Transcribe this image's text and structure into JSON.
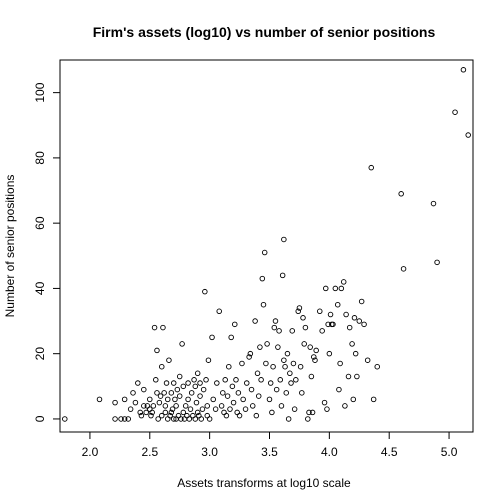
{
  "chart_data": {
    "type": "scatter",
    "title": "Firm's assets (log10) vs number of senior positions",
    "xlabel": "Assets transforms at log10 scale",
    "ylabel": "Number of senior positions",
    "xlim": [
      1.75,
      5.2
    ],
    "ylim": [
      -4,
      110
    ],
    "x_ticks": [
      2.0,
      2.5,
      3.0,
      3.5,
      4.0,
      4.5,
      5.0
    ],
    "x_tick_labels": [
      "2.0",
      "2.5",
      "3.0",
      "3.5",
      "4.0",
      "4.5",
      "5.0"
    ],
    "y_ticks": [
      0,
      20,
      40,
      60,
      80,
      100
    ],
    "y_tick_labels": [
      "0",
      "20",
      "40",
      "60",
      "80",
      "100"
    ],
    "grid": false,
    "legend": "none",
    "points": [
      [
        1.79,
        0
      ],
      [
        2.08,
        6
      ],
      [
        2.21,
        0
      ],
      [
        2.21,
        5
      ],
      [
        2.26,
        0
      ],
      [
        2.29,
        6
      ],
      [
        2.29,
        0
      ],
      [
        2.32,
        0
      ],
      [
        2.34,
        3
      ],
      [
        2.36,
        8
      ],
      [
        2.38,
        5
      ],
      [
        2.4,
        11
      ],
      [
        2.42,
        2
      ],
      [
        2.43,
        1
      ],
      [
        2.45,
        4
      ],
      [
        2.45,
        9
      ],
      [
        2.47,
        2
      ],
      [
        2.48,
        4
      ],
      [
        2.5,
        3
      ],
      [
        2.5,
        6
      ],
      [
        2.51,
        1
      ],
      [
        2.52,
        2
      ],
      [
        2.53,
        4
      ],
      [
        2.54,
        28
      ],
      [
        2.55,
        12
      ],
      [
        2.56,
        8
      ],
      [
        2.56,
        21
      ],
      [
        2.57,
        0
      ],
      [
        2.58,
        5
      ],
      [
        2.59,
        7
      ],
      [
        2.6,
        1
      ],
      [
        2.6,
        16
      ],
      [
        2.61,
        28
      ],
      [
        2.62,
        8
      ],
      [
        2.63,
        4
      ],
      [
        2.63,
        2
      ],
      [
        2.64,
        11
      ],
      [
        2.65,
        0
      ],
      [
        2.65,
        6
      ],
      [
        2.66,
        18
      ],
      [
        2.67,
        1
      ],
      [
        2.68,
        2
      ],
      [
        2.68,
        8
      ],
      [
        2.69,
        3
      ],
      [
        2.7,
        0
      ],
      [
        2.7,
        11
      ],
      [
        2.71,
        6
      ],
      [
        2.72,
        4
      ],
      [
        2.72,
        0
      ],
      [
        2.73,
        9
      ],
      [
        2.74,
        1
      ],
      [
        2.75,
        13
      ],
      [
        2.75,
        7
      ],
      [
        2.76,
        0
      ],
      [
        2.77,
        23
      ],
      [
        2.78,
        2
      ],
      [
        2.78,
        10
      ],
      [
        2.79,
        0
      ],
      [
        2.8,
        4
      ],
      [
        2.81,
        1
      ],
      [
        2.82,
        6
      ],
      [
        2.82,
        11
      ],
      [
        2.83,
        0
      ],
      [
        2.84,
        3
      ],
      [
        2.85,
        8
      ],
      [
        2.86,
        1
      ],
      [
        2.87,
        12
      ],
      [
        2.88,
        10
      ],
      [
        2.88,
        0
      ],
      [
        2.89,
        5
      ],
      [
        2.9,
        2
      ],
      [
        2.9,
        14
      ],
      [
        2.91,
        1
      ],
      [
        2.92,
        7
      ],
      [
        2.92,
        11
      ],
      [
        2.93,
        0
      ],
      [
        2.94,
        3
      ],
      [
        2.95,
        9
      ],
      [
        2.96,
        39
      ],
      [
        2.97,
        12
      ],
      [
        2.98,
        1
      ],
      [
        2.98,
        4
      ],
      [
        2.99,
        18
      ],
      [
        3.0,
        0
      ],
      [
        3.02,
        25
      ],
      [
        3.03,
        6
      ],
      [
        3.05,
        3
      ],
      [
        3.06,
        11
      ],
      [
        3.08,
        33
      ],
      [
        3.1,
        4
      ],
      [
        3.11,
        8
      ],
      [
        3.12,
        2
      ],
      [
        3.13,
        12
      ],
      [
        3.14,
        1
      ],
      [
        3.15,
        7
      ],
      [
        3.16,
        16
      ],
      [
        3.17,
        3
      ],
      [
        3.18,
        25
      ],
      [
        3.19,
        10
      ],
      [
        3.2,
        5
      ],
      [
        3.21,
        29
      ],
      [
        3.22,
        12
      ],
      [
        3.23,
        2
      ],
      [
        3.24,
        8
      ],
      [
        3.25,
        1
      ],
      [
        3.27,
        17
      ],
      [
        3.28,
        6
      ],
      [
        3.3,
        3
      ],
      [
        3.31,
        11
      ],
      [
        3.33,
        19
      ],
      [
        3.34,
        20
      ],
      [
        3.35,
        9
      ],
      [
        3.36,
        4
      ],
      [
        3.38,
        30
      ],
      [
        3.39,
        1
      ],
      [
        3.4,
        14
      ],
      [
        3.41,
        7
      ],
      [
        3.42,
        22
      ],
      [
        3.43,
        12
      ],
      [
        3.44,
        43
      ],
      [
        3.45,
        35
      ],
      [
        3.46,
        51
      ],
      [
        3.47,
        17
      ],
      [
        3.48,
        23
      ],
      [
        3.5,
        6
      ],
      [
        3.51,
        11
      ],
      [
        3.52,
        2
      ],
      [
        3.53,
        16
      ],
      [
        3.54,
        28
      ],
      [
        3.55,
        30
      ],
      [
        3.56,
        9
      ],
      [
        3.57,
        22
      ],
      [
        3.58,
        27
      ],
      [
        3.59,
        12
      ],
      [
        3.6,
        4
      ],
      [
        3.61,
        44
      ],
      [
        3.62,
        55
      ],
      [
        3.62,
        18
      ],
      [
        3.63,
        16
      ],
      [
        3.64,
        8
      ],
      [
        3.65,
        20
      ],
      [
        3.66,
        0
      ],
      [
        3.67,
        14
      ],
      [
        3.68,
        11
      ],
      [
        3.69,
        27
      ],
      [
        3.7,
        17
      ],
      [
        3.71,
        3
      ],
      [
        3.72,
        12
      ],
      [
        3.74,
        33
      ],
      [
        3.75,
        34
      ],
      [
        3.76,
        16
      ],
      [
        3.77,
        8
      ],
      [
        3.78,
        31
      ],
      [
        3.79,
        23
      ],
      [
        3.8,
        28
      ],
      [
        3.82,
        0
      ],
      [
        3.83,
        2
      ],
      [
        3.84,
        22
      ],
      [
        3.85,
        13
      ],
      [
        3.86,
        2
      ],
      [
        3.87,
        19
      ],
      [
        3.88,
        18
      ],
      [
        3.89,
        21
      ],
      [
        3.92,
        33
      ],
      [
        3.94,
        27
      ],
      [
        3.96,
        5
      ],
      [
        3.97,
        40
      ],
      [
        3.98,
        3
      ],
      [
        3.99,
        29
      ],
      [
        4.0,
        20
      ],
      [
        4.01,
        32
      ],
      [
        4.02,
        29
      ],
      [
        4.03,
        29
      ],
      [
        4.05,
        40
      ],
      [
        4.07,
        35
      ],
      [
        4.08,
        9
      ],
      [
        4.09,
        17
      ],
      [
        4.1,
        40
      ],
      [
        4.12,
        42
      ],
      [
        4.13,
        4
      ],
      [
        4.14,
        32
      ],
      [
        4.16,
        13
      ],
      [
        4.17,
        28
      ],
      [
        4.19,
        23
      ],
      [
        4.2,
        6
      ],
      [
        4.21,
        31
      ],
      [
        4.22,
        20
      ],
      [
        4.23,
        13
      ],
      [
        4.25,
        30
      ],
      [
        4.27,
        36
      ],
      [
        4.29,
        29
      ],
      [
        4.32,
        18
      ],
      [
        4.35,
        77
      ],
      [
        4.37,
        6
      ],
      [
        4.4,
        16
      ],
      [
        4.6,
        69
      ],
      [
        4.62,
        46
      ],
      [
        4.87,
        66
      ],
      [
        4.9,
        48
      ],
      [
        5.05,
        94
      ],
      [
        5.12,
        107
      ],
      [
        5.16,
        87
      ]
    ]
  }
}
